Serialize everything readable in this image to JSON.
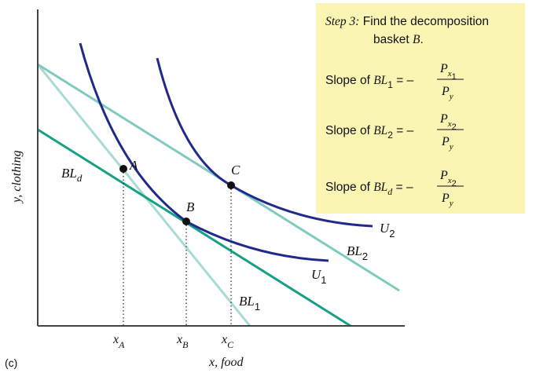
{
  "figure": {
    "panel_label": "(c)",
    "x_axis_label": "x, food",
    "y_axis_label": "y, clothing"
  },
  "curves": {
    "u1": "U",
    "u1_sub": "1",
    "u2": "U",
    "u2_sub": "2",
    "bl1": "BL",
    "bl1_sub": "1",
    "bl2": "BL",
    "bl2_sub": "2",
    "bld": "BL",
    "bld_sub": "d"
  },
  "points": {
    "a": "A",
    "b": "B",
    "c": "C"
  },
  "ticks": {
    "xa": "x",
    "xa_sub": "A",
    "xb": "x",
    "xb_sub": "B",
    "xc": "x",
    "xc_sub": "C"
  },
  "callout": {
    "step_label": "Step 3:",
    "step_text": " Find the decomposition",
    "step_line2": "basket ",
    "step_basket": "B",
    "step_period": ".",
    "rows": [
      {
        "prefix": "Slope of ",
        "bl": "BL",
        "sub": "1",
        "eq": " = –",
        "num": "P",
        "num_sub": "x",
        "num_subsub": "1",
        "den": "P",
        "den_sub": "y"
      },
      {
        "prefix": "Slope of ",
        "bl": "BL",
        "sub": "2",
        "eq": " = –",
        "num": "P",
        "num_sub": "x",
        "num_subsub": "2",
        "den": "P",
        "den_sub": "y"
      },
      {
        "prefix": "Slope of ",
        "bl": "BL",
        "sub": "d",
        "eq": " = –",
        "num": "P",
        "num_sub": "x",
        "num_subsub": "2",
        "den": "P",
        "den_sub": "y"
      }
    ]
  },
  "colors": {
    "indifference": "#1f2a8a",
    "bl1": "#a7dcd2",
    "bl2": "#7fcabd",
    "bld": "#16a085",
    "callout_bg": "#fbf5b4",
    "axis": "#444444"
  }
}
